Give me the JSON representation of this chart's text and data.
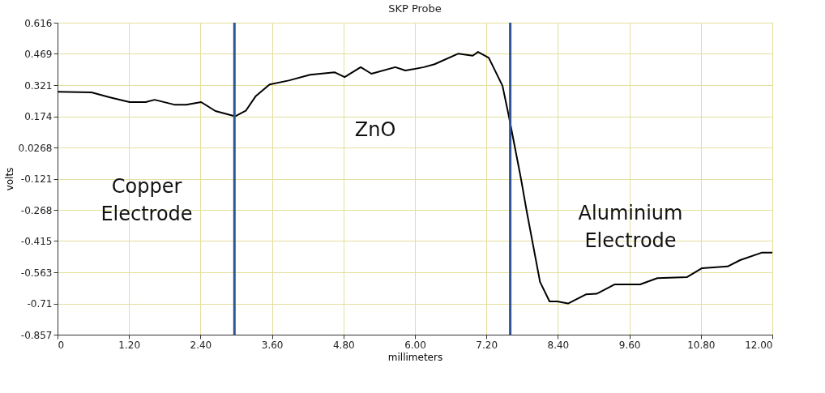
{
  "chart_data": {
    "type": "line",
    "title": "SKP Probe",
    "xlabel": "millimeters",
    "ylabel": "volts",
    "x": [
      0,
      0.57,
      0.87,
      1.21,
      1.48,
      1.63,
      1.96,
      2.16,
      2.41,
      2.65,
      2.98,
      3.16,
      3.33,
      3.56,
      3.88,
      4.24,
      4.65,
      4.82,
      5.09,
      5.27,
      5.67,
      5.84,
      6.15,
      6.33,
      6.73,
      6.97,
      7.06,
      7.24,
      7.47,
      7.58,
      7.78,
      7.88,
      8.1,
      8.26,
      8.39,
      8.57,
      8.87,
      9.05,
      9.35,
      9.78,
      10.07,
      10.57,
      10.82,
      11.25,
      11.46,
      11.82,
      12.0
    ],
    "series": [
      {
        "color": "#000000",
        "values": [
          0.29,
          0.287,
          0.264,
          0.241,
          0.241,
          0.252,
          0.229,
          0.229,
          0.241,
          0.199,
          0.174,
          0.2,
          0.27,
          0.324,
          0.343,
          0.37,
          0.382,
          0.359,
          0.406,
          0.375,
          0.406,
          0.39,
          0.406,
          0.42,
          0.47,
          0.46,
          0.478,
          0.45,
          0.318,
          0.17,
          -0.12,
          -0.28,
          -0.608,
          -0.7,
          -0.7,
          -0.71,
          -0.667,
          -0.664,
          -0.62,
          -0.62,
          -0.59,
          -0.585,
          -0.543,
          -0.535,
          -0.505,
          -0.47,
          -0.47
        ]
      }
    ],
    "xlim": [
      0,
      12
    ],
    "xticks": [
      0,
      {
        "value": 1.2,
        "label": "1.20"
      },
      {
        "value": 2.4,
        "label": "2.40"
      },
      {
        "value": 3.6,
        "label": "3.60"
      },
      {
        "value": 4.8,
        "label": "4.80"
      },
      {
        "value": 6,
        "label": "6.00"
      },
      {
        "value": 7.2,
        "label": "7.20"
      },
      {
        "value": 8.4,
        "label": "8.40"
      },
      {
        "value": 9.6,
        "label": "9.60"
      },
      {
        "value": 10.8,
        "label": "10.80"
      },
      {
        "value": 12,
        "label": "12.00"
      }
    ],
    "ylim": [
      -0.857,
      0.616
    ],
    "yticks": [
      0.616,
      0.469,
      0.321,
      0.174,
      0.0268,
      -0.121,
      -0.268,
      -0.415,
      -0.563,
      -0.71,
      -0.857
    ],
    "grid": true,
    "ref_lines": [
      {
        "axis": "x",
        "value": 2.97,
        "color": "#2f5597"
      },
      {
        "axis": "x",
        "value": 7.6,
        "color": "#2f5597"
      }
    ],
    "annotations": [
      "Copper Electrode",
      "ZnO",
      "Aluminium Electrode"
    ]
  }
}
